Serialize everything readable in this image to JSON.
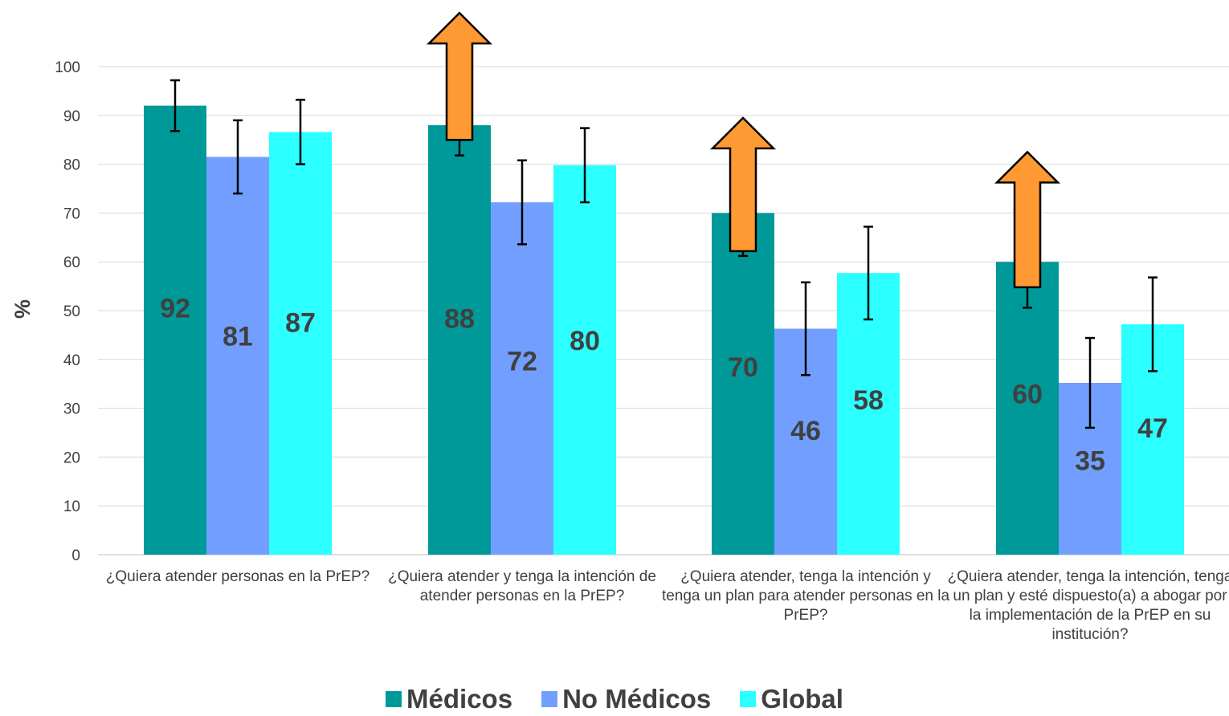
{
  "chart_data": {
    "type": "bar",
    "ylabel": "%",
    "ylim": [
      0,
      100
    ],
    "yticks": [
      0,
      10,
      20,
      30,
      40,
      50,
      60,
      70,
      80,
      90,
      100
    ],
    "grid": true,
    "legend_position": "bottom",
    "categories": [
      "¿Quiera atender personas en la PrEP?",
      "¿Quiera atender y tenga la intención de atender personas en la PrEP?",
      "¿Quiera atender, tenga la intención y tenga un plan para atender personas en la PrEP?",
      "¿Quiera atender, tenga la intención, tenga un plan y esté dispuesto(a) a abogar por la implementación de la PrEP en su institución?"
    ],
    "series": [
      {
        "name": "Médicos",
        "color": "#009999",
        "values": [
          92,
          88,
          70,
          60
        ],
        "labels": [
          "92",
          "88",
          "70",
          "60"
        ],
        "error_low": [
          86.8,
          81.8,
          61.2,
          50.6
        ],
        "error_high": [
          97.2,
          94.0,
          78.8,
          69.4
        ]
      },
      {
        "name": "No Médicos",
        "color": "#729FFF",
        "values": [
          81.5,
          72.2,
          46.3,
          35.2
        ],
        "labels": [
          "81",
          "72",
          "46",
          "35"
        ],
        "error_low": [
          74.0,
          63.6,
          36.8,
          26.0
        ],
        "error_high": [
          89.0,
          80.8,
          55.8,
          44.4
        ]
      },
      {
        "name": "Global",
        "color": "#2BFFFF",
        "values": [
          86.6,
          79.8,
          57.7,
          47.2
        ],
        "labels": [
          "87",
          "80",
          "58",
          "47"
        ],
        "error_low": [
          80.0,
          72.2,
          48.2,
          37.6
        ],
        "error_high": [
          93.2,
          87.4,
          67.2,
          56.8
        ]
      }
    ],
    "arrows": [
      {
        "category_index": 1,
        "color": "#FF9933",
        "from": 85,
        "to": 111
      },
      {
        "category_index": 2,
        "color": "#FF9933",
        "from": 62.2,
        "to": 89.5
      },
      {
        "category_index": 3,
        "color": "#FF9933",
        "from": 54.8,
        "to": 82.5
      }
    ]
  }
}
